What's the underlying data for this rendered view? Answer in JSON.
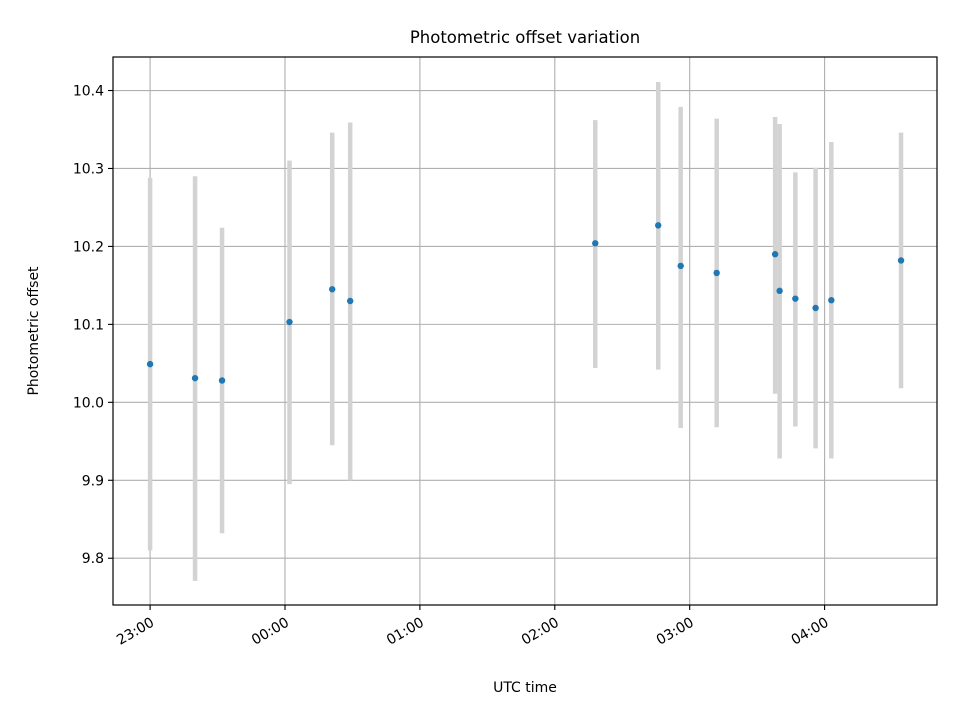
{
  "chart_data": {
    "type": "scatter",
    "title": "Photometric offset variation",
    "xlabel": "UTC time",
    "ylabel": "Photometric offset",
    "x_tick_labels": [
      "23:00",
      "00:00",
      "01:00",
      "02:00",
      "03:00",
      "04:00"
    ],
    "x_ticks_minutes": [
      0,
      60,
      120,
      180,
      240,
      300
    ],
    "xlim_minutes": [
      -16.5,
      350.0
    ],
    "y_ticks": [
      9.8,
      9.9,
      10.0,
      10.1,
      10.2,
      10.3,
      10.4
    ],
    "y_tick_labels": [
      "9.8",
      "9.9",
      "10.0",
      "10.1",
      "10.2",
      "10.3",
      "10.4"
    ],
    "ylim": [
      9.74,
      10.443
    ],
    "grid": true,
    "point_color": "#1f77b4",
    "errorbar_color": "#d3d3d3",
    "points": [
      {
        "time": "23:00",
        "y": 10.049,
        "ylow": 9.81,
        "yhigh": 10.288
      },
      {
        "time": "23:20",
        "y": 10.031,
        "ylow": 9.771,
        "yhigh": 10.29
      },
      {
        "time": "23:32",
        "y": 10.028,
        "ylow": 9.832,
        "yhigh": 10.224
      },
      {
        "time": "00:02",
        "y": 10.103,
        "ylow": 9.895,
        "yhigh": 10.31
      },
      {
        "time": "00:21",
        "y": 10.145,
        "ylow": 9.945,
        "yhigh": 10.346
      },
      {
        "time": "00:29",
        "y": 10.13,
        "ylow": 9.9,
        "yhigh": 10.359
      },
      {
        "time": "02:18",
        "y": 10.204,
        "ylow": 10.044,
        "yhigh": 10.362
      },
      {
        "time": "02:46",
        "y": 10.227,
        "ylow": 10.042,
        "yhigh": 10.411
      },
      {
        "time": "02:56",
        "y": 10.175,
        "ylow": 9.967,
        "yhigh": 10.379
      },
      {
        "time": "03:12",
        "y": 10.166,
        "ylow": 9.968,
        "yhigh": 10.364
      },
      {
        "time": "03:38",
        "y": 10.19,
        "ylow": 10.011,
        "yhigh": 10.366
      },
      {
        "time": "03:40",
        "y": 10.143,
        "ylow": 9.928,
        "yhigh": 10.357
      },
      {
        "time": "03:47",
        "y": 10.133,
        "ylow": 9.969,
        "yhigh": 10.295
      },
      {
        "time": "03:56",
        "y": 10.121,
        "ylow": 9.941,
        "yhigh": 10.301
      },
      {
        "time": "04:03",
        "y": 10.131,
        "ylow": 9.928,
        "yhigh": 10.334
      },
      {
        "time": "04:34",
        "y": 10.182,
        "ylow": 10.018,
        "yhigh": 10.346
      }
    ]
  }
}
